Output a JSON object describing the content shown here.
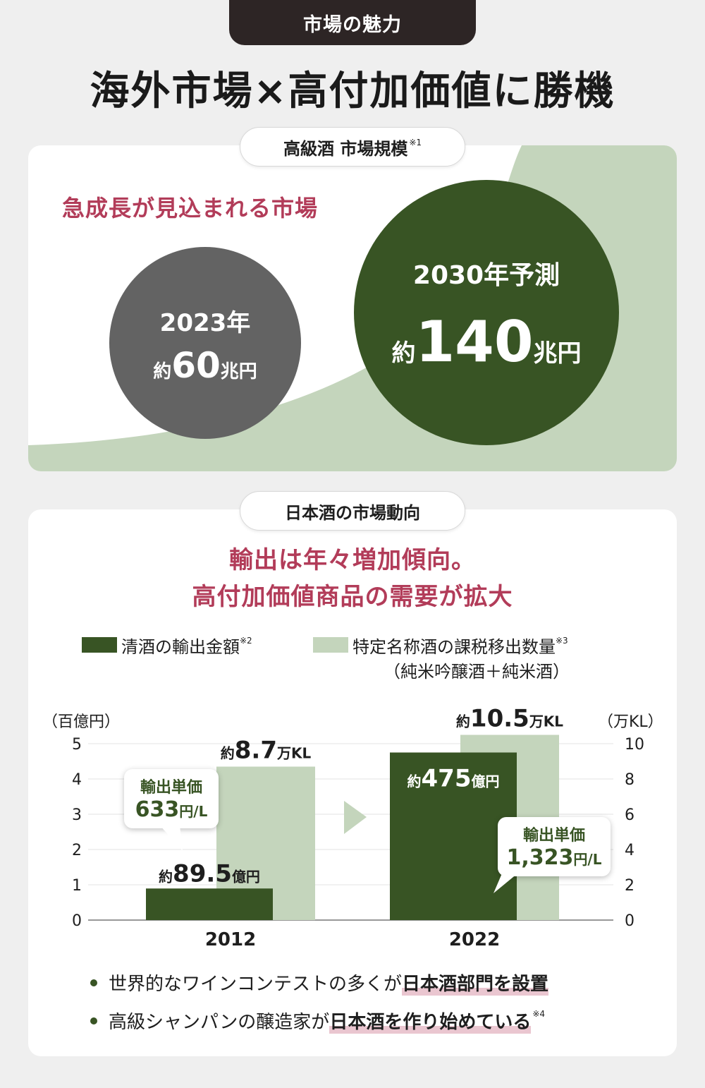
{
  "header": {
    "tag": "市場の魅力",
    "title": "海外市場×高付加価値に勝機"
  },
  "market_section": {
    "pill_label": "高級酒 市場規模",
    "pill_note": "※1",
    "headline": "急成長が見込まれる市場",
    "circle_2023": {
      "year": "2023年",
      "prefix": "約",
      "value": "60",
      "unit": "兆円"
    },
    "circle_2030": {
      "year": "2030年予測",
      "prefix": "約",
      "value": "140",
      "unit": "兆円"
    },
    "colors": {
      "dark_green": "#385424",
      "light_green": "#c4d5bc",
      "gray": "#636363"
    }
  },
  "trend_section": {
    "pill_label": "日本酒の市場動向",
    "headline_line1": "輸出は年々増加傾向。",
    "headline_line2": "高付加価値商品の需要が拡大",
    "legend": {
      "series1": "清酒の輸出金額",
      "series1_note": "※2",
      "series2": "特定名称酒の課税移出数量",
      "series2_note": "※3",
      "series2_sub": "（純米吟醸酒＋純米酒）"
    },
    "bubble_2012": {
      "title": "輸出単価",
      "value": "633",
      "unit": "円/L"
    },
    "bubble_2022": {
      "title": "輸出単価",
      "value": "1,323",
      "unit": "円/L"
    },
    "bullets": [
      {
        "text": "世界的なワインコンテストの多くが",
        "highlight": "日本酒部門を設置",
        "note": ""
      },
      {
        "text": "高級シャンパンの醸造家が",
        "highlight": "日本酒を作り始めている",
        "note": "※4"
      }
    ]
  },
  "chart_data": {
    "type": "bar",
    "categories": [
      "2012",
      "2022"
    ],
    "series": [
      {
        "name": "清酒の輸出金額",
        "values": [
          0.895,
          4.75
        ],
        "axis": "left",
        "color": "#385424",
        "labels": [
          {
            "prefix": "約",
            "value": "89.5",
            "unit": "億円"
          },
          {
            "prefix": "約",
            "value": "475",
            "unit": "億円"
          }
        ]
      },
      {
        "name": "特定名称酒の課税移出数量",
        "values": [
          8.7,
          10.5
        ],
        "axis": "right",
        "color": "#c4d5bc",
        "labels": [
          {
            "prefix": "約",
            "value": "8.7",
            "unit": "万KL"
          },
          {
            "prefix": "約",
            "value": "10.5",
            "unit": "万KL"
          }
        ]
      }
    ],
    "y_left": {
      "label": "（百億円）",
      "ylim": [
        0,
        5
      ],
      "ticks": [
        "0",
        "1",
        "2",
        "3",
        "4",
        "5"
      ]
    },
    "y_right": {
      "label": "（万KL）",
      "ylim": [
        0,
        10
      ],
      "ticks": [
        "0",
        "2",
        "4",
        "6",
        "8",
        "10"
      ]
    },
    "grid": true
  }
}
